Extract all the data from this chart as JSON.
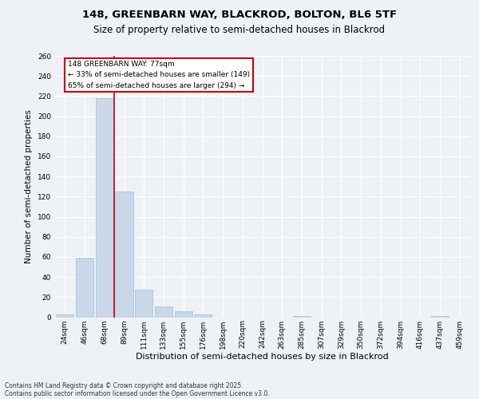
{
  "title_line1": "148, GREENBARN WAY, BLACKROD, BOLTON, BL6 5TF",
  "title_line2": "Size of property relative to semi-detached houses in Blackrod",
  "xlabel": "Distribution of semi-detached houses by size in Blackrod",
  "ylabel": "Number of semi-detached properties",
  "categories": [
    "24sqm",
    "46sqm",
    "68sqm",
    "89sqm",
    "111sqm",
    "133sqm",
    "155sqm",
    "176sqm",
    "198sqm",
    "220sqm",
    "242sqm",
    "263sqm",
    "285sqm",
    "307sqm",
    "329sqm",
    "350sqm",
    "372sqm",
    "394sqm",
    "416sqm",
    "437sqm",
    "459sqm"
  ],
  "values": [
    3,
    59,
    218,
    125,
    27,
    11,
    6,
    3,
    0,
    0,
    0,
    0,
    1,
    0,
    0,
    0,
    0,
    0,
    0,
    1,
    0
  ],
  "bar_color": "#c8d8e8",
  "bar_edge_color": "#a8bece",
  "property_label": "148 GREENBARN WAY: 77sqm",
  "pct_smaller": 33,
  "count_smaller": 149,
  "pct_larger": 65,
  "count_larger": 294,
  "annotation_box_color": "#cc0000",
  "vline_x": 2.5,
  "vline_color": "#cc0000",
  "ylim": [
    0,
    260
  ],
  "yticks": [
    0,
    20,
    40,
    60,
    80,
    100,
    120,
    140,
    160,
    180,
    200,
    220,
    240,
    260
  ],
  "footer_line1": "Contains HM Land Registry data © Crown copyright and database right 2025.",
  "footer_line2": "Contains public sector information licensed under the Open Government Licence v3.0.",
  "bg_color": "#eef2f7",
  "grid_color": "#ffffff",
  "title1_fontsize": 9.5,
  "title2_fontsize": 8.5,
  "ylabel_fontsize": 7.5,
  "xlabel_fontsize": 8.0,
  "tick_fontsize": 6.5,
  "annot_fontsize": 6.5,
  "footer_fontsize": 5.5
}
